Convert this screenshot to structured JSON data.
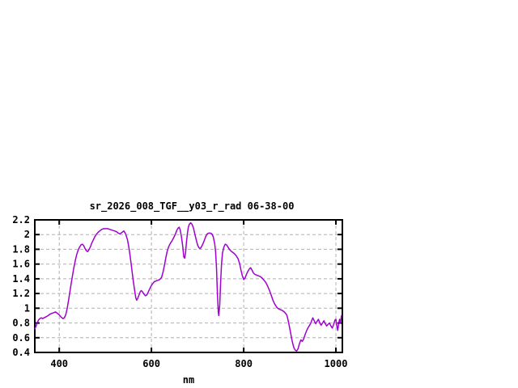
{
  "window": {
    "background": "#ffffff"
  },
  "colors": {
    "background": "#ffffff",
    "border": "#000000",
    "grid": "#b0b0b0",
    "text": "#000000",
    "line": "#a000d0"
  },
  "chart_data": {
    "type": "line",
    "title": "sr_2026_008_TGF__y03_r_rad 06-38-00",
    "xlabel": "nm",
    "ylabel": "",
    "xlim": [
      347,
      1014
    ],
    "ylim": [
      0.4,
      2.2
    ],
    "x_ticks": [
      400,
      600,
      800,
      1000
    ],
    "y_ticks": [
      0.4,
      0.6,
      0.8,
      1,
      1.2,
      1.4,
      1.6,
      1.8,
      2,
      2.2
    ],
    "grid": true,
    "legend_position": "none",
    "series": [
      {
        "name": "sr_2026_008_TGF__y03_r_rad",
        "color": "#a000d0",
        "points": [
          [
            347,
            0.72
          ],
          [
            350,
            0.76
          ],
          [
            352,
            0.8
          ],
          [
            355,
            0.84
          ],
          [
            358,
            0.86
          ],
          [
            361,
            0.87
          ],
          [
            364,
            0.86
          ],
          [
            367,
            0.87
          ],
          [
            370,
            0.88
          ],
          [
            373,
            0.89
          ],
          [
            376,
            0.9
          ],
          [
            380,
            0.92
          ],
          [
            384,
            0.93
          ],
          [
            388,
            0.94
          ],
          [
            392,
            0.95
          ],
          [
            396,
            0.93
          ],
          [
            400,
            0.91
          ],
          [
            404,
            0.88
          ],
          [
            408,
            0.86
          ],
          [
            411,
            0.87
          ],
          [
            414,
            0.91
          ],
          [
            417,
            0.99
          ],
          [
            420,
            1.1
          ],
          [
            423,
            1.22
          ],
          [
            426,
            1.34
          ],
          [
            429,
            1.45
          ],
          [
            432,
            1.56
          ],
          [
            435,
            1.65
          ],
          [
            438,
            1.73
          ],
          [
            441,
            1.79
          ],
          [
            444,
            1.83
          ],
          [
            447,
            1.86
          ],
          [
            450,
            1.87
          ],
          [
            453,
            1.85
          ],
          [
            456,
            1.81
          ],
          [
            459,
            1.78
          ],
          [
            462,
            1.77
          ],
          [
            465,
            1.8
          ],
          [
            468,
            1.84
          ],
          [
            471,
            1.89
          ],
          [
            474,
            1.93
          ],
          [
            477,
            1.97
          ],
          [
            480,
            2.0
          ],
          [
            484,
            2.03
          ],
          [
            488,
            2.05
          ],
          [
            492,
            2.07
          ],
          [
            496,
            2.08
          ],
          [
            500,
            2.08
          ],
          [
            505,
            2.08
          ],
          [
            510,
            2.07
          ],
          [
            515,
            2.06
          ],
          [
            520,
            2.05
          ],
          [
            524,
            2.04
          ],
          [
            528,
            2.02
          ],
          [
            532,
            2.01
          ],
          [
            536,
            2.03
          ],
          [
            540,
            2.05
          ],
          [
            544,
            2.01
          ],
          [
            548,
            1.93
          ],
          [
            551,
            1.83
          ],
          [
            554,
            1.7
          ],
          [
            557,
            1.55
          ],
          [
            560,
            1.4
          ],
          [
            563,
            1.26
          ],
          [
            566,
            1.14
          ],
          [
            568,
            1.11
          ],
          [
            570,
            1.13
          ],
          [
            573,
            1.18
          ],
          [
            576,
            1.23
          ],
          [
            578,
            1.24
          ],
          [
            581,
            1.22
          ],
          [
            584,
            1.19
          ],
          [
            587,
            1.17
          ],
          [
            590,
            1.18
          ],
          [
            593,
            1.22
          ],
          [
            596,
            1.26
          ],
          [
            599,
            1.3
          ],
          [
            602,
            1.33
          ],
          [
            606,
            1.36
          ],
          [
            610,
            1.37
          ],
          [
            614,
            1.38
          ],
          [
            618,
            1.39
          ],
          [
            622,
            1.42
          ],
          [
            625,
            1.49
          ],
          [
            628,
            1.58
          ],
          [
            631,
            1.68
          ],
          [
            634,
            1.77
          ],
          [
            637,
            1.83
          ],
          [
            640,
            1.87
          ],
          [
            643,
            1.9
          ],
          [
            646,
            1.93
          ],
          [
            649,
            1.97
          ],
          [
            652,
            2.01
          ],
          [
            655,
            2.06
          ],
          [
            658,
            2.09
          ],
          [
            660,
            2.1
          ],
          [
            662,
            2.07
          ],
          [
            665,
            1.97
          ],
          [
            668,
            1.83
          ],
          [
            670,
            1.7
          ],
          [
            672,
            1.68
          ],
          [
            674,
            1.76
          ],
          [
            676,
            1.9
          ],
          [
            678,
            2.02
          ],
          [
            680,
            2.1
          ],
          [
            682,
            2.14
          ],
          [
            685,
            2.16
          ],
          [
            688,
            2.14
          ],
          [
            691,
            2.09
          ],
          [
            694,
            2.01
          ],
          [
            697,
            1.93
          ],
          [
            700,
            1.86
          ],
          [
            703,
            1.82
          ],
          [
            706,
            1.81
          ],
          [
            709,
            1.84
          ],
          [
            712,
            1.88
          ],
          [
            715,
            1.93
          ],
          [
            718,
            1.98
          ],
          [
            721,
            2.01
          ],
          [
            724,
            2.02
          ],
          [
            728,
            2.02
          ],
          [
            731,
            2.01
          ],
          [
            734,
            1.97
          ],
          [
            737,
            1.88
          ],
          [
            739,
            1.78
          ],
          [
            741,
            1.55
          ],
          [
            743,
            1.2
          ],
          [
            745,
            0.95
          ],
          [
            746,
            0.9
          ],
          [
            748,
            1.05
          ],
          [
            750,
            1.35
          ],
          [
            752,
            1.6
          ],
          [
            754,
            1.75
          ],
          [
            757,
            1.83
          ],
          [
            760,
            1.87
          ],
          [
            763,
            1.86
          ],
          [
            766,
            1.83
          ],
          [
            769,
            1.8
          ],
          [
            772,
            1.78
          ],
          [
            776,
            1.76
          ],
          [
            780,
            1.74
          ],
          [
            784,
            1.71
          ],
          [
            788,
            1.67
          ],
          [
            791,
            1.61
          ],
          [
            794,
            1.52
          ],
          [
            797,
            1.44
          ],
          [
            800,
            1.39
          ],
          [
            803,
            1.41
          ],
          [
            806,
            1.46
          ],
          [
            809,
            1.5
          ],
          [
            812,
            1.53
          ],
          [
            815,
            1.55
          ],
          [
            818,
            1.52
          ],
          [
            821,
            1.48
          ],
          [
            824,
            1.46
          ],
          [
            828,
            1.45
          ],
          [
            832,
            1.44
          ],
          [
            836,
            1.43
          ],
          [
            840,
            1.41
          ],
          [
            844,
            1.38
          ],
          [
            848,
            1.35
          ],
          [
            852,
            1.3
          ],
          [
            856,
            1.24
          ],
          [
            860,
            1.17
          ],
          [
            864,
            1.1
          ],
          [
            868,
            1.05
          ],
          [
            872,
            1.01
          ],
          [
            876,
            0.99
          ],
          [
            880,
            0.98
          ],
          [
            884,
            0.97
          ],
          [
            888,
            0.95
          ],
          [
            891,
            0.93
          ],
          [
            894,
            0.9
          ],
          [
            897,
            0.82
          ],
          [
            900,
            0.72
          ],
          [
            903,
            0.62
          ],
          [
            906,
            0.53
          ],
          [
            909,
            0.46
          ],
          [
            912,
            0.43
          ],
          [
            915,
            0.42
          ],
          [
            918,
            0.45
          ],
          [
            921,
            0.52
          ],
          [
            924,
            0.57
          ],
          [
            927,
            0.55
          ],
          [
            930,
            0.58
          ],
          [
            933,
            0.64
          ],
          [
            936,
            0.69
          ],
          [
            939,
            0.73
          ],
          [
            942,
            0.76
          ],
          [
            945,
            0.79
          ],
          [
            948,
            0.84
          ],
          [
            950,
            0.87
          ],
          [
            953,
            0.83
          ],
          [
            956,
            0.79
          ],
          [
            959,
            0.82
          ],
          [
            962,
            0.85
          ],
          [
            965,
            0.8
          ],
          [
            968,
            0.77
          ],
          [
            971,
            0.8
          ],
          [
            974,
            0.83
          ],
          [
            977,
            0.79
          ],
          [
            980,
            0.76
          ],
          [
            983,
            0.78
          ],
          [
            986,
            0.8
          ],
          [
            989,
            0.76
          ],
          [
            992,
            0.73
          ],
          [
            995,
            0.78
          ],
          [
            998,
            0.84
          ],
          [
            1000,
            0.85
          ],
          [
            1002,
            0.76
          ],
          [
            1004,
            0.7
          ],
          [
            1006,
            0.79
          ],
          [
            1008,
            0.85
          ],
          [
            1010,
            0.8
          ],
          [
            1012,
            0.9
          ]
        ]
      }
    ]
  }
}
